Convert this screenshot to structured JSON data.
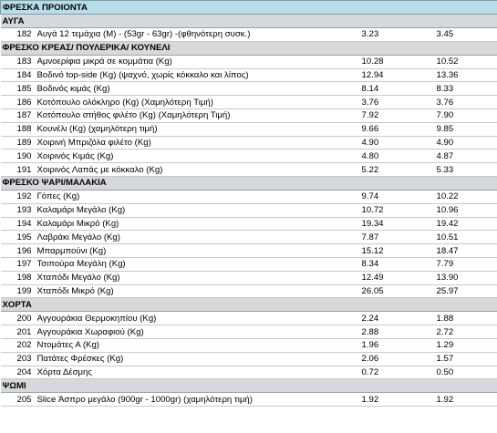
{
  "title": "ΦΡΕΣΚΑ ΠΡΟΙΟΝΤΑ",
  "sections": [
    {
      "name": "ΑΥΓΑ",
      "items": [
        {
          "code": "182",
          "name": "Αυγά 12 τεμάχια (M) - (53gr - 63gr) -(φθηνότερη συσκ.)",
          "price_a": "3.23",
          "price_b": "3.45"
        }
      ]
    },
    {
      "name": "ΦΡΕΣΚΟ ΚΡΕΑΣ/ ΠΟΥΛΕΡΙΚΑ/ ΚΟΥΝΕΛΙ",
      "items": [
        {
          "code": "183",
          "name": "Αμνοερίφια μικρά σε κομμάτια (Kg)",
          "price_a": "10.28",
          "price_b": "10.52"
        },
        {
          "code": "184",
          "name": "Βοδινό top-side (Kg) (ψαχνό, χωρίς κόκκαλο και λίπος)",
          "price_a": "12.94",
          "price_b": "13.36"
        },
        {
          "code": "185",
          "name": "Βοδινός κιμάς (Kg)",
          "price_a": "8.14",
          "price_b": "8.33"
        },
        {
          "code": "186",
          "name": "Κοτόπουλο ολόκληρο (Kg) (Χαμηλότερη Τιμή)",
          "price_a": "3.76",
          "price_b": "3.76"
        },
        {
          "code": "187",
          "name": "Κοτόπουλο στήθος φιλέτο (Kg) (Χαμηλότερη Τιμή)",
          "price_a": "7.92",
          "price_b": "7.90"
        },
        {
          "code": "188",
          "name": "Κουνέλι (Kg) (χαμηλότερη τιμή)",
          "price_a": "9.66",
          "price_b": "9.85"
        },
        {
          "code": "189",
          "name": "Χοιρινή Μπριζόλα φιλέτο (Kg)",
          "price_a": "4.90",
          "price_b": "4.90"
        },
        {
          "code": "190",
          "name": "Χοιρινός Κιμάς (Kg)",
          "price_a": "4.80",
          "price_b": "4.87"
        },
        {
          "code": "191",
          "name": "Χοιρινός Λαπάς με κόκκαλο (Kg)",
          "price_a": "5.22",
          "price_b": "5.33"
        }
      ]
    },
    {
      "name": "ΦΡΕΣΚΟ ΨΑΡΙ/ΜΑΛΑΚΙΑ",
      "items": [
        {
          "code": "192",
          "name": "Γόπες (Kg)",
          "price_a": "9.74",
          "price_b": "10.22"
        },
        {
          "code": "193",
          "name": "Καλαμάρι Μεγάλο (Kg)",
          "price_a": "10.72",
          "price_b": "10.96"
        },
        {
          "code": "194",
          "name": "Καλαμάρι Μικρό (Kg)",
          "price_a": "19.34",
          "price_b": "19.42"
        },
        {
          "code": "195",
          "name": "Λαβράκι Μεγάλο (Kg)",
          "price_a": "7.87",
          "price_b": "10.51"
        },
        {
          "code": "196",
          "name": "Μπαρμπούνι (Kg)",
          "price_a": "15.12",
          "price_b": "18.47"
        },
        {
          "code": "197",
          "name": "Τσιπούρα Μεγάλη (Kg)",
          "price_a": "8.34",
          "price_b": "7.79"
        },
        {
          "code": "198",
          "name": "Χταπόδι Μεγάλο (Kg)",
          "price_a": "12.49",
          "price_b": "13.90"
        },
        {
          "code": "199",
          "name": "Χταπόδι Μικρό (Kg)",
          "price_a": "26.05",
          "price_b": "25.97"
        }
      ]
    },
    {
      "name": "ΧΟΡΤΑ",
      "items": [
        {
          "code": "200",
          "name": "Αγγουράκια Θερμοκηπίου (Kg)",
          "price_a": "2.24",
          "price_b": "1.88"
        },
        {
          "code": "201",
          "name": "Αγγουράκια Χωραφιού (Kg)",
          "price_a": "2.88",
          "price_b": "2.72"
        },
        {
          "code": "202",
          "name": "Ντομάτες Α (Kg)",
          "price_a": "1.96",
          "price_b": "1.29"
        },
        {
          "code": "203",
          "name": "Πατάτες Φρέσκες (Kg)",
          "price_a": "2.06",
          "price_b": "1.57"
        },
        {
          "code": "204",
          "name": "Χόρτα Δέσμης",
          "price_a": "0.72",
          "price_b": "0.50"
        }
      ]
    },
    {
      "name": "ΨΩΜΙ",
      "items": [
        {
          "code": "205",
          "name": "Slice Άσπρο μεγάλο (900gr - 1000gr) (χαμηλότερη τιμή)",
          "price_a": "1.92",
          "price_b": "1.92"
        }
      ]
    }
  ]
}
